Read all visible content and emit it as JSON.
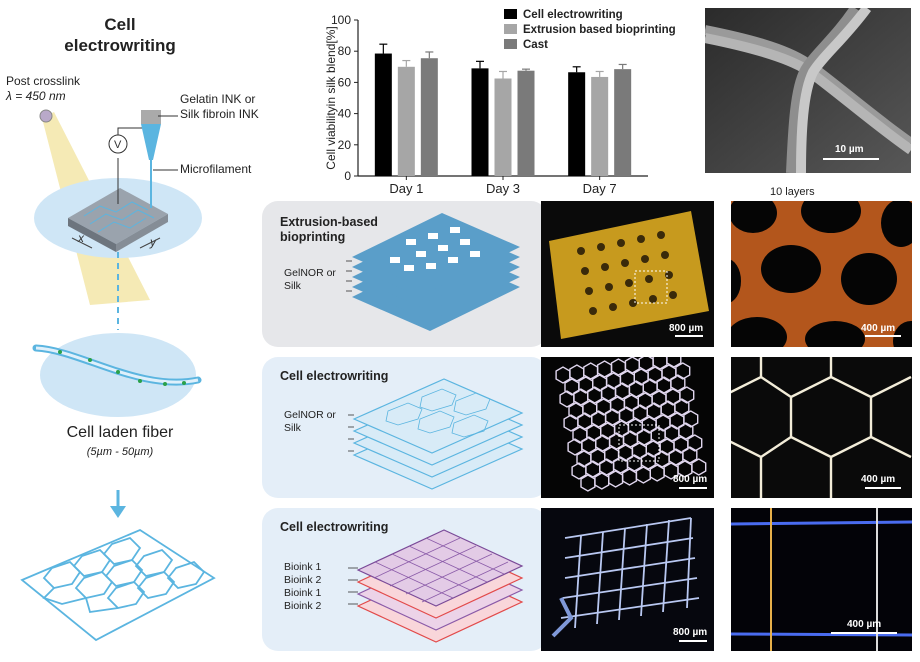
{
  "left": {
    "title": "Cell electrowriting",
    "post_crosslink": "Post crosslink",
    "wavelength": "λ = 450 nm",
    "voltage_symbol": "V",
    "ink_label": "Gelatin INK or Silk fibroin INK",
    "microfilament": "Microfilament",
    "axis_x": "x",
    "axis_y": "y",
    "fiber_label": "Cell laden fiber",
    "fiber_range": "(5µm - 50µm)"
  },
  "chart_data": {
    "type": "bar",
    "categories": [
      "Day 1",
      "Day 3",
      "Day 7"
    ],
    "series": [
      {
        "name": "Cell electrowriting",
        "values": [
          78.5,
          69,
          66.5
        ],
        "errors": [
          6,
          4.5,
          3.5
        ],
        "color": "#000000"
      },
      {
        "name": "Extrusion based bioprinting",
        "values": [
          70,
          62.5,
          63.5
        ],
        "errors": [
          4,
          4.5,
          3.5
        ],
        "color": "#a6a6a6"
      },
      {
        "name": "Cast",
        "values": [
          75.5,
          67.5,
          68.5
        ],
        "errors": [
          4,
          1,
          3
        ],
        "color": "#7a7a7a"
      }
    ],
    "ylabel": "Cell viabilityin silk blend[%]",
    "ylim": [
      0,
      100
    ],
    "yticks": [
      0,
      20,
      40,
      60,
      80,
      100
    ],
    "legend": "top-right"
  },
  "sem": {
    "scale": "10 µm"
  },
  "ten_layers": "10 layers",
  "panels": [
    {
      "label": "Extrusion-based bioprinting",
      "layers_label": "GelNOR or Silk",
      "scale1": "800 µm",
      "scale2": "400 µm",
      "bg": "#e6e7ea"
    },
    {
      "label": "Cell electrowriting",
      "layers_label": "GelNOR or Silk",
      "scale1": "800 µm",
      "scale2": "400 µm",
      "bg": "#e4eef8"
    },
    {
      "label": "Cell electrowriting",
      "bioinks": [
        "Bioink 1",
        "Bioink 2",
        "Bioink 1",
        "Bioink 2"
      ],
      "scale1": "800 µm",
      "scale2": "400 µm",
      "bg": "#e4eef8"
    }
  ],
  "colors": {
    "accent_blue": "#5bb5e0",
    "light_blue": "#cfe6f6",
    "scaffold_blue": "#5a9ec9",
    "beam_yellow": "#f3e6a8"
  }
}
